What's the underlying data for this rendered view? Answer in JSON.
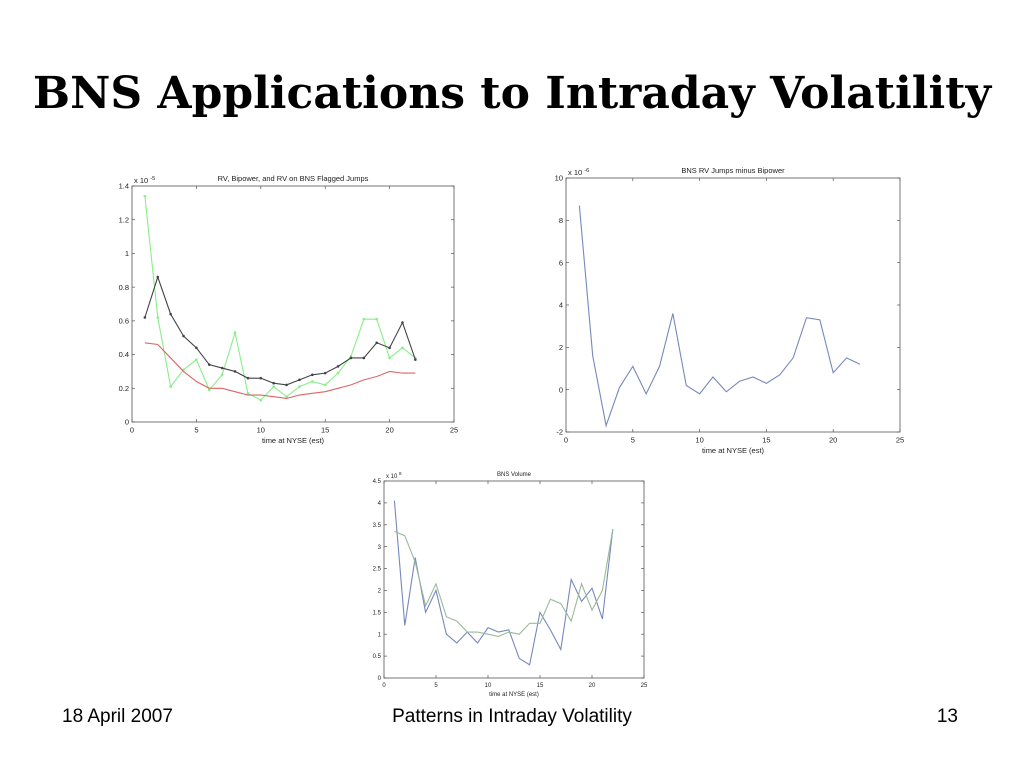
{
  "slide": {
    "title": "BNS Applications to Intraday Volatility",
    "footer_date": "18 April 2007",
    "footer_center": "Patterns in Intraday Volatility",
    "page_number": "13"
  },
  "chart_data": [
    {
      "type": "line",
      "title": "RV, Bipower, and RV on BNS Flagged Jumps",
      "xlabel": "time at NYSE (est)",
      "ylabel": "",
      "exponent": "x 10",
      "exponent_power": "-5",
      "xlim": [
        0,
        25
      ],
      "ylim": [
        0,
        1.4
      ],
      "xticks": [
        0,
        5,
        10,
        15,
        20,
        25
      ],
      "yticks": [
        0,
        0.2,
        0.4,
        0.6,
        0.8,
        1,
        1.2,
        1.4
      ],
      "grid": false,
      "legend": "none",
      "x": [
        1,
        2,
        3,
        4,
        5,
        6,
        7,
        8,
        9,
        10,
        11,
        12,
        13,
        14,
        15,
        16,
        17,
        18,
        19,
        20,
        21,
        22
      ],
      "series": [
        {
          "color": "#88ee88",
          "marker": true,
          "values": [
            1.34,
            0.62,
            0.21,
            0.31,
            0.37,
            0.19,
            0.28,
            0.53,
            0.17,
            0.13,
            0.21,
            0.15,
            0.21,
            0.24,
            0.22,
            0.29,
            0.39,
            0.61,
            0.61,
            0.38,
            0.44,
            0.38
          ]
        },
        {
          "color": "#444444",
          "marker": true,
          "values": [
            0.62,
            0.86,
            0.64,
            0.51,
            0.44,
            0.34,
            0.32,
            0.3,
            0.26,
            0.26,
            0.23,
            0.22,
            0.25,
            0.28,
            0.29,
            0.33,
            0.38,
            0.38,
            0.47,
            0.44,
            0.59,
            0.37
          ]
        },
        {
          "color": "#dd6666",
          "marker": false,
          "values": [
            0.47,
            0.46,
            0.38,
            0.3,
            0.24,
            0.2,
            0.2,
            0.18,
            0.16,
            0.16,
            0.15,
            0.14,
            0.16,
            0.17,
            0.18,
            0.2,
            0.22,
            0.25,
            0.27,
            0.3,
            0.29,
            0.29
          ]
        }
      ]
    },
    {
      "type": "line",
      "title": "BNS RV Jumps minus Bipower",
      "xlabel": "time at NYSE (est)",
      "ylabel": "",
      "exponent": "x 10",
      "exponent_power": "-6",
      "xlim": [
        0,
        25
      ],
      "ylim": [
        -2,
        10
      ],
      "xticks": [
        0,
        5,
        10,
        15,
        20,
        25
      ],
      "yticks": [
        -2,
        0,
        2,
        4,
        6,
        8,
        10
      ],
      "grid": false,
      "legend": "none",
      "x": [
        1,
        2,
        3,
        4,
        5,
        6,
        7,
        8,
        9,
        10,
        11,
        12,
        13,
        14,
        15,
        16,
        17,
        18,
        19,
        20,
        21,
        22
      ],
      "series": [
        {
          "color": "#7788bb",
          "marker": false,
          "values": [
            8.7,
            1.6,
            -1.7,
            0.1,
            1.1,
            -0.2,
            1.1,
            3.6,
            0.2,
            -0.2,
            0.6,
            -0.1,
            0.4,
            0.6,
            0.3,
            0.7,
            1.5,
            3.4,
            3.3,
            0.8,
            1.5,
            1.2
          ]
        }
      ]
    },
    {
      "type": "line",
      "title": "BNS Volume",
      "xlabel": "time at NYSE (est)",
      "ylabel": "",
      "exponent": "x 10",
      "exponent_power": "8",
      "xlim": [
        0,
        25
      ],
      "ylim": [
        0,
        4.5
      ],
      "xticks": [
        0,
        5,
        10,
        15,
        20,
        25
      ],
      "yticks": [
        0,
        0.5,
        1,
        1.5,
        2,
        2.5,
        3,
        3.5,
        4,
        4.5
      ],
      "grid": false,
      "legend": "none",
      "x": [
        1,
        2,
        3,
        4,
        5,
        6,
        7,
        8,
        9,
        10,
        11,
        12,
        13,
        14,
        15,
        16,
        17,
        18,
        19,
        20,
        21,
        22
      ],
      "series": [
        {
          "color": "#7788bb",
          "marker": false,
          "values": [
            4.05,
            1.2,
            2.75,
            1.5,
            2.0,
            1.0,
            0.8,
            1.05,
            0.8,
            1.15,
            1.05,
            1.1,
            0.45,
            0.3,
            1.5,
            1.1,
            0.65,
            2.25,
            1.75,
            2.05,
            1.35,
            3.4
          ]
        },
        {
          "color": "#99bb99",
          "marker": false,
          "values": [
            3.35,
            3.25,
            2.65,
            1.65,
            2.15,
            1.4,
            1.3,
            1.05,
            1.05,
            1.0,
            0.95,
            1.05,
            1.0,
            1.25,
            1.25,
            1.8,
            1.7,
            1.3,
            2.15,
            1.55,
            2.0,
            3.4
          ]
        }
      ]
    }
  ]
}
